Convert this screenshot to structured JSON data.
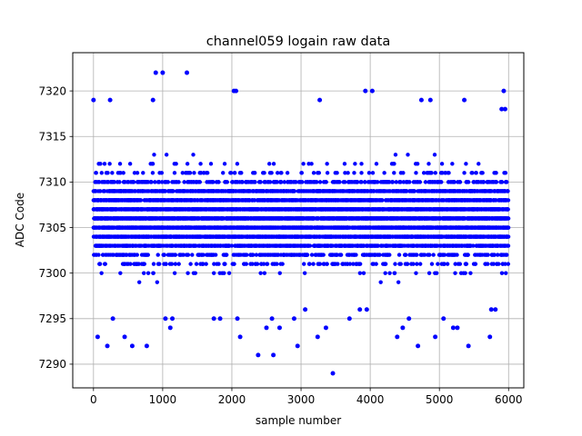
{
  "chart_data": {
    "type": "scatter",
    "title": "channel059 logain raw data",
    "xlabel": "sample number",
    "ylabel": "ADC Code",
    "xlim": [
      -300,
      6220
    ],
    "ylim": [
      7287.4,
      7324.2
    ],
    "xticks": [
      0,
      1000,
      2000,
      3000,
      4000,
      5000,
      6000
    ],
    "yticks": [
      7290,
      7295,
      7300,
      7305,
      7310,
      7315,
      7320
    ],
    "grid": true,
    "marker_color": "#0000ff",
    "n_samples": 6000,
    "dense_band": [
      7297,
      7315
    ],
    "series": [
      {
        "points": [
          [
            0,
            7319
          ],
          [
            60,
            7293
          ],
          [
            200,
            7292
          ],
          [
            240,
            7319
          ],
          [
            280,
            7295
          ],
          [
            450,
            7293
          ],
          [
            560,
            7292
          ],
          [
            770,
            7292
          ],
          [
            860,
            7319
          ],
          [
            900,
            7322
          ],
          [
            1000,
            7322
          ],
          [
            1040,
            7295
          ],
          [
            1110,
            7294
          ],
          [
            1140,
            7295
          ],
          [
            1350,
            7322
          ],
          [
            1740,
            7295
          ],
          [
            1830,
            7295
          ],
          [
            2030,
            7320
          ],
          [
            2060,
            7320
          ],
          [
            2080,
            7295
          ],
          [
            2120,
            7293
          ],
          [
            2380,
            7291
          ],
          [
            2500,
            7294
          ],
          [
            2580,
            7295
          ],
          [
            2600,
            7291
          ],
          [
            2690,
            7294
          ],
          [
            2900,
            7295
          ],
          [
            2950,
            7292
          ],
          [
            3060,
            7296
          ],
          [
            3240,
            7293
          ],
          [
            3270,
            7319
          ],
          [
            3360,
            7294
          ],
          [
            3460,
            7289
          ],
          [
            3700,
            7295
          ],
          [
            3850,
            7296
          ],
          [
            3930,
            7320
          ],
          [
            3950,
            7296
          ],
          [
            4030,
            7320
          ],
          [
            4390,
            7293
          ],
          [
            4470,
            7294
          ],
          [
            4560,
            7295
          ],
          [
            4690,
            7292
          ],
          [
            4740,
            7319
          ],
          [
            4870,
            7319
          ],
          [
            4940,
            7293
          ],
          [
            5060,
            7295
          ],
          [
            5200,
            7294
          ],
          [
            5260,
            7294
          ],
          [
            5360,
            7319
          ],
          [
            5420,
            7292
          ],
          [
            5730,
            7293
          ],
          [
            5750,
            7296
          ],
          [
            5810,
            7296
          ],
          [
            5930,
            7320
          ],
          [
            5900,
            7318
          ],
          [
            5950,
            7318
          ]
        ]
      }
    ]
  }
}
